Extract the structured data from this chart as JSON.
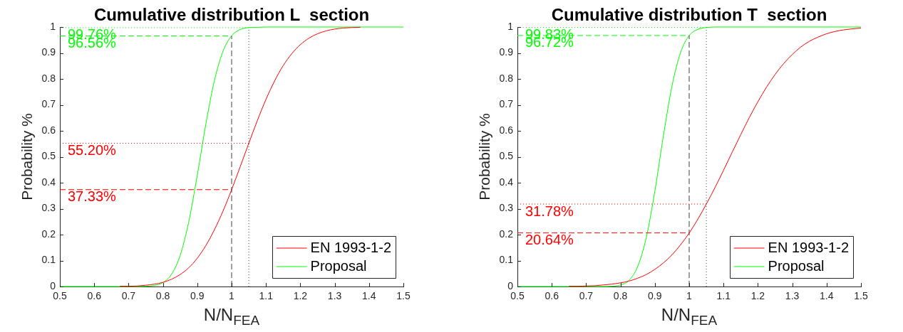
{
  "chart_data": [
    {
      "type": "line",
      "title": "Cumulative distribution L  section",
      "xlabel": "N/N$_{FEA}$",
      "ylabel": "Probability %",
      "x": [
        0.5,
        0.525,
        0.55,
        0.575,
        0.6,
        0.625,
        0.65,
        0.675,
        0.7,
        0.725,
        0.75,
        0.775,
        0.8,
        0.825,
        0.85,
        0.875,
        0.9,
        0.925,
        0.95,
        0.975,
        1,
        1.025,
        1.05,
        1.075,
        1.1,
        1.125,
        1.15,
        1.175,
        1.2,
        1.225,
        1.25,
        1.275,
        1.3,
        1.325,
        1.35,
        1.375,
        1.4,
        1.425,
        1.45,
        1.475,
        1.5
      ],
      "series": [
        {
          "name": "EN 1993-1-2",
          "color": "#ff0000",
          "values": [
            null,
            null,
            null,
            null,
            null,
            null,
            null,
            0.001,
            0.001,
            0.002,
            0.005,
            0.009,
            0.016,
            0.028,
            0.046,
            0.072,
            0.109,
            0.158,
            0.219,
            0.291,
            0.373,
            0.462,
            0.552,
            0.64,
            0.721,
            0.792,
            0.851,
            0.897,
            0.932,
            0.957,
            0.974,
            0.985,
            0.992,
            0.996,
            0.998,
            0.999,
            null,
            null,
            null,
            null,
            null
          ]
        },
        {
          "name": "Proposal",
          "color": "#00ff00",
          "values": [
            0,
            0,
            0,
            0,
            0,
            0,
            0,
            0,
            0,
            0,
            0.001,
            0.004,
            0.015,
            0.047,
            0.119,
            0.248,
            0.429,
            0.626,
            0.794,
            0.907,
            0.966,
            0.99,
            0.998,
            0.999,
            1,
            1,
            1,
            1,
            1,
            1,
            1,
            1,
            1,
            1,
            1,
            1,
            1,
            1,
            1,
            1,
            1
          ]
        }
      ],
      "xlim": [
        0.5,
        1.5
      ],
      "xticks": [
        0.5,
        0.6,
        0.7,
        0.8,
        0.9,
        1,
        1.1,
        1.2,
        1.3,
        1.4,
        1.5
      ],
      "ylim": [
        0,
        1
      ],
      "yticks": [
        0,
        0.1,
        0.2,
        0.3,
        0.4,
        0.5,
        0.6,
        0.7,
        0.8,
        0.9,
        1
      ],
      "legend": "bottom right",
      "ref_lines": [
        {
          "axis": "x",
          "value": 1,
          "color": "#404040",
          "line_style": "dashed"
        },
        {
          "axis": "x",
          "value": 1.05,
          "color": "#404040",
          "line_style": "dotted"
        },
        {
          "axis": "y",
          "value": 0.3733,
          "label": "37.33%",
          "color": "#ff0000",
          "line_style": "dashed"
        },
        {
          "axis": "y",
          "value": 0.552,
          "label": "55.20%",
          "color": "#ff0000",
          "line_style": "dotted"
        },
        {
          "axis": "y",
          "value": 0.9656,
          "label": "96.56%",
          "color": "#00ff00",
          "line_style": "dashed"
        },
        {
          "axis": "y",
          "value": 0.9976,
          "label": "99.76%",
          "color": "#00ff00",
          "line_style": "dotted"
        }
      ]
    },
    {
      "type": "line",
      "title": "Cumulative distribution T  section",
      "xlabel": "N/N$_{FEA}$",
      "ylabel": "Probability %",
      "x": [
        0.5,
        0.525,
        0.55,
        0.575,
        0.6,
        0.625,
        0.65,
        0.675,
        0.7,
        0.725,
        0.75,
        0.775,
        0.8,
        0.825,
        0.85,
        0.875,
        0.9,
        0.925,
        0.95,
        0.975,
        1,
        1.025,
        1.05,
        1.075,
        1.1,
        1.125,
        1.15,
        1.175,
        1.2,
        1.225,
        1.25,
        1.275,
        1.3,
        1.325,
        1.35,
        1.375,
        1.4,
        1.425,
        1.45,
        1.475,
        1.5
      ],
      "series": [
        {
          "name": "EN 1993-1-2",
          "color": "#ff0000",
          "values": [
            null,
            null,
            null,
            null,
            null,
            null,
            0.001,
            0.001,
            0.002,
            0.003,
            0.006,
            0.009,
            0.014,
            0.021,
            0.032,
            0.046,
            0.066,
            0.091,
            0.122,
            0.161,
            0.206,
            0.259,
            0.318,
            0.381,
            0.448,
            0.517,
            0.585,
            0.651,
            0.712,
            0.768,
            0.817,
            0.859,
            0.894,
            0.923,
            0.945,
            0.961,
            0.974,
            0.983,
            0.989,
            0.993,
            0.996
          ]
        },
        {
          "name": "Proposal",
          "color": "#00ff00",
          "values": [
            0,
            0,
            0,
            0,
            0,
            0,
            0,
            0,
            0,
            0,
            0,
            0.001,
            0.006,
            0.024,
            0.077,
            0.188,
            0.367,
            0.581,
            0.773,
            0.902,
            0.967,
            0.991,
            0.998,
            1,
            1,
            1,
            1,
            1,
            1,
            1,
            1,
            1,
            1,
            1,
            1,
            1,
            1,
            1,
            1,
            1,
            1
          ]
        }
      ],
      "xlim": [
        0.5,
        1.5
      ],
      "xticks": [
        0.5,
        0.6,
        0.7,
        0.8,
        0.9,
        1,
        1.1,
        1.2,
        1.3,
        1.4,
        1.5
      ],
      "ylim": [
        0,
        1
      ],
      "yticks": [
        0,
        0.1,
        0.2,
        0.3,
        0.4,
        0.5,
        0.6,
        0.7,
        0.8,
        0.9,
        1
      ],
      "legend": "bottom right",
      "ref_lines": [
        {
          "axis": "x",
          "value": 1,
          "color": "#404040",
          "line_style": "dashed"
        },
        {
          "axis": "x",
          "value": 1.05,
          "color": "#404040",
          "line_style": "dotted"
        },
        {
          "axis": "y",
          "value": 0.2064,
          "label": "20.64%",
          "color": "#ff0000",
          "line_style": "dashed"
        },
        {
          "axis": "y",
          "value": 0.3178,
          "label": "31.78%",
          "color": "#ff0000",
          "line_style": "dotted"
        },
        {
          "axis": "y",
          "value": 0.9672,
          "label": "96.72%",
          "color": "#00ff00",
          "line_style": "dashed"
        },
        {
          "axis": "y",
          "value": 0.9983,
          "label": "99.83%",
          "color": "#00ff00",
          "line_style": "dotted"
        }
      ]
    }
  ]
}
